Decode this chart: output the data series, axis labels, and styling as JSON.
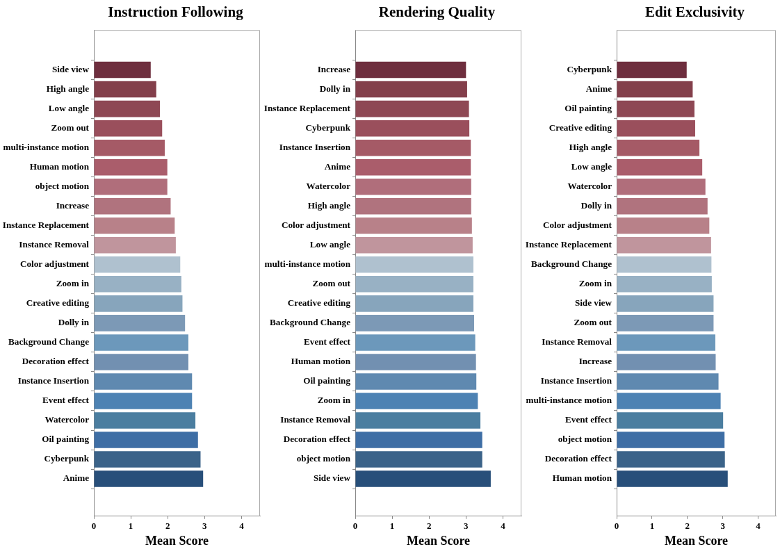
{
  "chart_data": [
    {
      "type": "bar",
      "orientation": "horizontal",
      "title": "Instruction Following",
      "xlabel": "Mean Score",
      "categories": [
        "Side view",
        "High angle",
        "Low angle",
        "Zoom out",
        "multi-instance motion",
        "Human motion",
        "object motion",
        "Increase",
        "Instance Replacement",
        "Instance Removal",
        "Color adjustment",
        "Zoom in",
        "Creative editing",
        "Dolly in",
        "Background Change",
        "Decoration effect",
        "Instance Insertion",
        "Event effect",
        "Watercolor",
        "Oil painting",
        "Cyberpunk",
        "Anime"
      ],
      "values": [
        1.54,
        1.69,
        1.79,
        1.85,
        1.92,
        1.99,
        1.99,
        2.08,
        2.19,
        2.22,
        2.34,
        2.37,
        2.4,
        2.47,
        2.56,
        2.56,
        2.66,
        2.66,
        2.75,
        2.82,
        2.89,
        2.96
      ],
      "colors": [
        "#6e2e3e",
        "#833f4b",
        "#8e4854",
        "#9a4f5c",
        "#a55a66",
        "#aa5d6b",
        "#b06e7b",
        "#b0737e",
        "#b88189",
        "#c0959d",
        "#afc1cf",
        "#98b1c4",
        "#87a5bc",
        "#7c99b6",
        "#6c98bb",
        "#7290b1",
        "#5f89b0",
        "#4d82b3",
        "#4b7ea0",
        "#3e6ea5",
        "#3b6389",
        "#284f7a"
      ],
      "xlim": [
        0,
        4.5
      ],
      "xticks": [
        0,
        1,
        2,
        3,
        4
      ],
      "grid": false
    },
    {
      "type": "bar",
      "orientation": "horizontal",
      "title": "Rendering Quality",
      "xlabel": "Mean Score",
      "categories": [
        "Increase",
        "Dolly in",
        "Instance Replacement",
        "Cyberpunk",
        "Instance Insertion",
        "Anime",
        "Watercolor",
        "High angle",
        "Color adjustment",
        "Low angle",
        "multi-instance motion",
        "Zoom out",
        "Creative editing",
        "Background Change",
        "Event effect",
        "Human motion",
        "Oil painting",
        "Zoom in",
        "Instance Removal",
        "Decoration effect",
        "object motion",
        "Side view"
      ],
      "values": [
        3.0,
        3.03,
        3.08,
        3.09,
        3.13,
        3.13,
        3.14,
        3.14,
        3.16,
        3.18,
        3.2,
        3.2,
        3.2,
        3.22,
        3.25,
        3.27,
        3.28,
        3.32,
        3.39,
        3.44,
        3.44,
        3.67
      ],
      "colors": [
        "#6e2e3e",
        "#833f4b",
        "#8e4854",
        "#9a4f5c",
        "#a55a66",
        "#aa5d6b",
        "#b06e7b",
        "#b0737e",
        "#b88189",
        "#c0959d",
        "#afc1cf",
        "#98b1c4",
        "#87a5bc",
        "#7c99b6",
        "#6c98bb",
        "#7290b1",
        "#5f89b0",
        "#4d82b3",
        "#4b7ea0",
        "#3e6ea5",
        "#3b6389",
        "#284f7a"
      ],
      "xlim": [
        0,
        4.5
      ],
      "xticks": [
        0,
        1,
        2,
        3,
        4
      ],
      "grid": false
    },
    {
      "type": "bar",
      "orientation": "horizontal",
      "title": "Edit Exclusivity",
      "xlabel": "Mean Score",
      "categories": [
        "Cyberpunk",
        "Anime",
        "Oil painting",
        "Creative editing",
        "High angle",
        "Low angle",
        "Watercolor",
        "Dolly in",
        "Color adjustment",
        "Instance Replacement",
        "Background Change",
        "Zoom in",
        "Side view",
        "Zoom out",
        "Instance Removal",
        "Increase",
        "Instance Insertion",
        "multi-instance motion",
        "Event effect",
        "object motion",
        "Decoration effect",
        "Human motion"
      ],
      "values": [
        1.98,
        2.15,
        2.2,
        2.22,
        2.34,
        2.42,
        2.51,
        2.57,
        2.62,
        2.67,
        2.68,
        2.69,
        2.74,
        2.74,
        2.79,
        2.8,
        2.88,
        2.94,
        3.01,
        3.05,
        3.06,
        3.14
      ],
      "colors": [
        "#6e2e3e",
        "#833f4b",
        "#8e4854",
        "#9a4f5c",
        "#a55a66",
        "#aa5d6b",
        "#b06e7b",
        "#b0737e",
        "#b88189",
        "#c0959d",
        "#afc1cf",
        "#98b1c4",
        "#87a5bc",
        "#7c99b6",
        "#6c98bb",
        "#7290b1",
        "#5f89b0",
        "#4d82b3",
        "#4b7ea0",
        "#3e6ea5",
        "#3b6389",
        "#284f7a"
      ],
      "xlim": [
        0,
        4.5
      ],
      "xticks": [
        0,
        1,
        2,
        3,
        4
      ],
      "grid": false
    }
  ]
}
